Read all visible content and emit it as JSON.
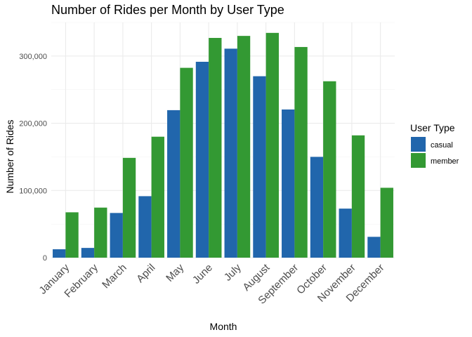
{
  "chart_data": {
    "type": "bar",
    "title": "Number of Rides per Month by User Type",
    "xlabel": "Month",
    "ylabel": "Number of Rides",
    "categories": [
      "January",
      "February",
      "March",
      "April",
      "May",
      "June",
      "July",
      "August",
      "September",
      "October",
      "November",
      "December"
    ],
    "series": [
      {
        "name": "casual",
        "color": "#2166ac",
        "values": [
          12500,
          14500,
          66500,
          91500,
          219500,
          291500,
          311000,
          270000,
          220500,
          150000,
          73000,
          31000
        ]
      },
      {
        "name": "member",
        "color": "#339933",
        "values": [
          67500,
          74500,
          148500,
          180000,
          282500,
          327000,
          330000,
          334500,
          313500,
          262500,
          182000,
          104000
        ]
      }
    ],
    "ylim": [
      0,
      350000
    ],
    "yticks": [
      0,
      100000,
      200000,
      300000
    ],
    "ytick_labels": [
      "0",
      "100,000",
      "200,000",
      "300,000"
    ],
    "grid": true,
    "legend": {
      "title": "User Type",
      "position": "right"
    }
  }
}
